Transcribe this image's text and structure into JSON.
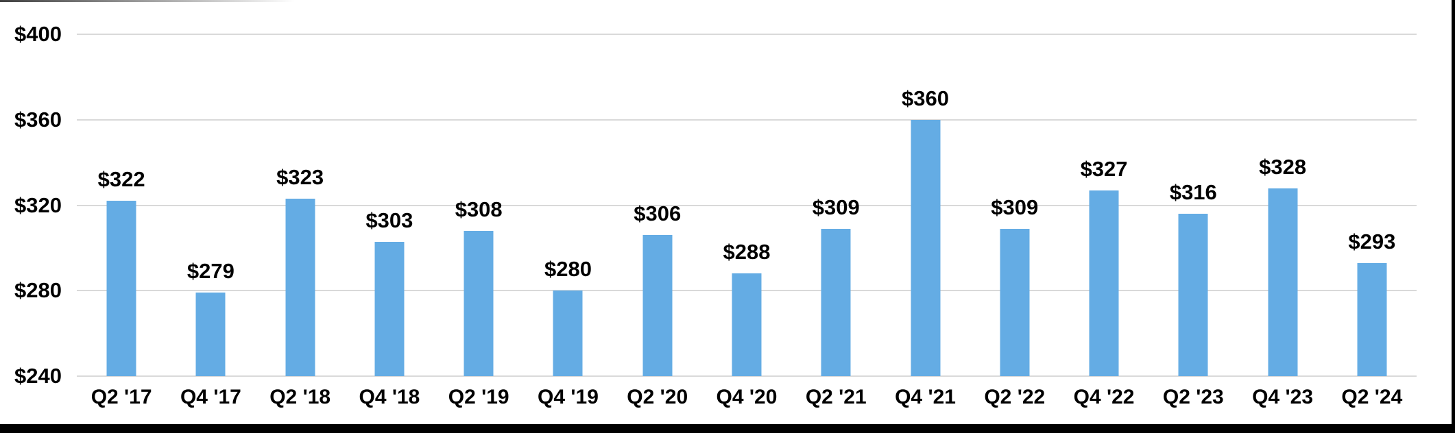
{
  "chart_data": {
    "type": "bar",
    "title": "",
    "xlabel": "",
    "ylabel": "",
    "categories": [
      "Q2 '17",
      "Q4 '17",
      "Q2 '18",
      "Q4 '18",
      "Q2 '19",
      "Q4 '19",
      "Q2 '20",
      "Q4 '20",
      "Q2 '21",
      "Q4 '21",
      "Q2 '22",
      "Q4 '22",
      "Q2 '23",
      "Q4 '23",
      "Q2 '24"
    ],
    "values": [
      322,
      279,
      323,
      303,
      308,
      280,
      306,
      288,
      309,
      360,
      309,
      327,
      316,
      328,
      293
    ],
    "data_labels": [
      "$322",
      "$279",
      "$323",
      "$303",
      "$308",
      "$280",
      "$306",
      "$288",
      "$309",
      "$360",
      "$309",
      "$327",
      "$316",
      "$328",
      "$293"
    ],
    "yticks": [
      400,
      360,
      320,
      280,
      240
    ],
    "ytick_labels": [
      "$400",
      "$360",
      "$320",
      "$280",
      "$240"
    ],
    "ylim": [
      240,
      400
    ],
    "grid": true,
    "legend": "none",
    "bar_color": "#64ACE4",
    "gridline_color": "#D9D9D9",
    "label_color": "#000000",
    "background_color": "#FFFFFF",
    "frame_color": "#000000"
  }
}
